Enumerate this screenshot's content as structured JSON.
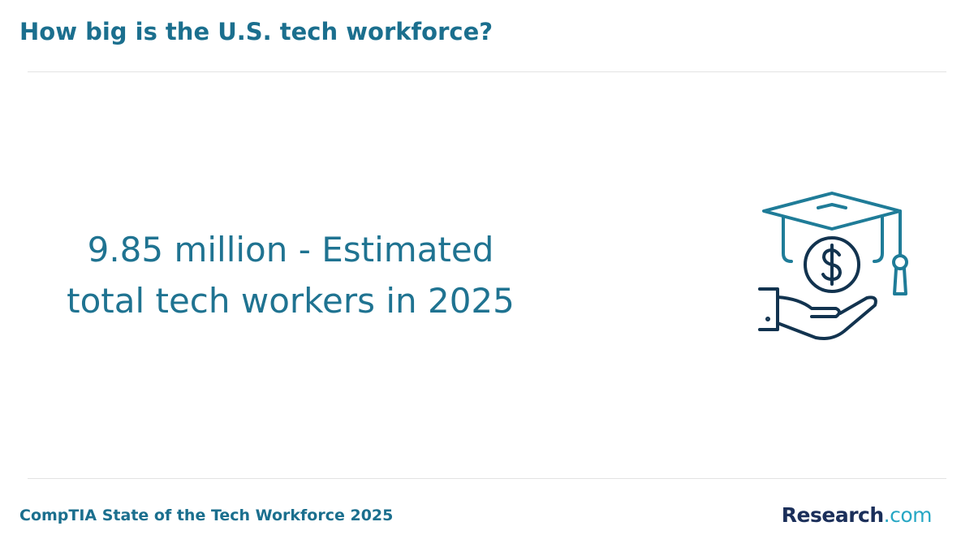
{
  "header": {
    "title": "How big is the U.S. tech workforce?"
  },
  "stat": {
    "text": "9.85 million - Estimated total tech workers in 2025"
  },
  "footer": {
    "source": "CompTIA State of the Tech Workforce 2025",
    "logo": {
      "name": "Research",
      "suffix": ".com"
    }
  }
}
